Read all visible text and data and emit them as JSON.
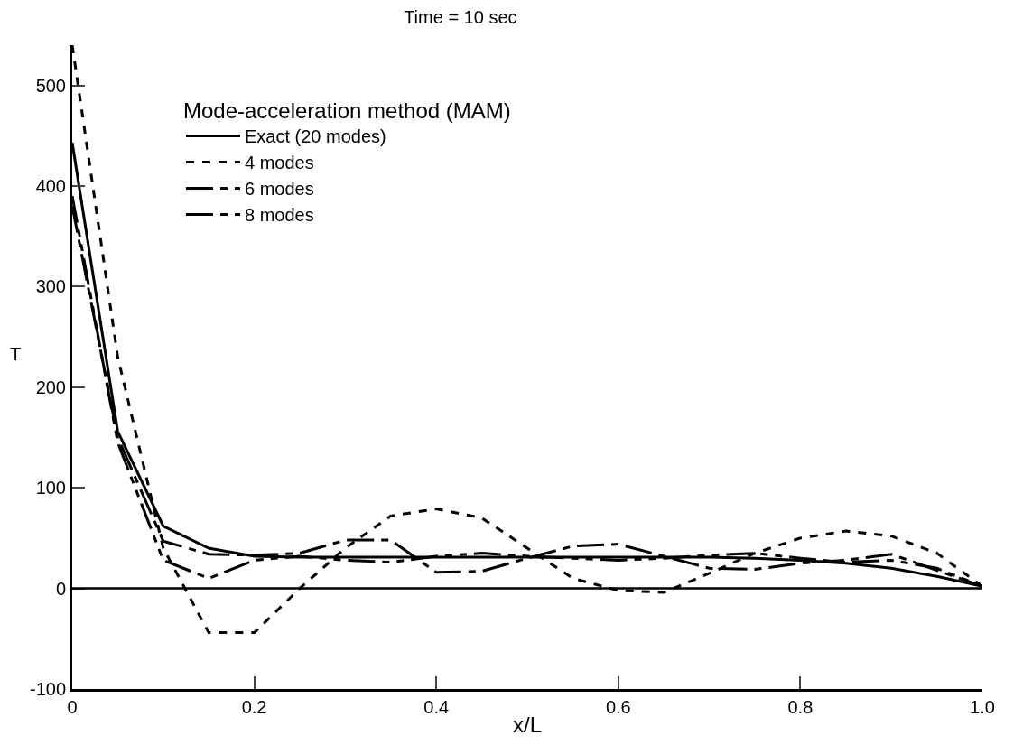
{
  "chart_data": {
    "type": "line",
    "title": "Time = 10 sec",
    "xlabel": "x/L",
    "ylabel": "T",
    "legend_title": "Mode-acceleration method (MAM)",
    "x": [
      0,
      0.05,
      0.1,
      0.15,
      0.2,
      0.25,
      0.3,
      0.35,
      0.4,
      0.45,
      0.5,
      0.55,
      0.6,
      0.65,
      0.7,
      0.75,
      0.8,
      0.85,
      0.9,
      0.95,
      1.0
    ],
    "series": [
      {
        "name": "Exact (20 modes)",
        "color": "#000000",
        "line_style": "solid",
        "values": [
          443,
          156,
          62,
          40,
          32,
          31,
          31,
          31,
          31,
          31,
          31,
          31,
          31,
          31,
          31,
          30,
          28,
          25,
          20,
          12,
          2
        ]
      },
      {
        "name": "4 modes",
        "color": "#000000",
        "line_style": "dashed",
        "values": [
          540,
          230,
          40,
          -44,
          -44,
          0,
          40,
          72,
          79,
          70,
          40,
          10,
          -2,
          -4,
          15,
          35,
          50,
          57,
          52,
          35,
          2
        ]
      },
      {
        "name": "6 modes",
        "color": "#000000",
        "line_style": "dashdot",
        "values": [
          380,
          150,
          47,
          34,
          33,
          35,
          48,
          48,
          16,
          17,
          30,
          42,
          44,
          32,
          20,
          19,
          25,
          28,
          34,
          18,
          2
        ]
      },
      {
        "name": "8 modes",
        "color": "#000000",
        "line_style": "dashdotdot",
        "values": [
          390,
          145,
          28,
          10,
          28,
          32,
          28,
          26,
          32,
          35,
          32,
          30,
          28,
          30,
          33,
          35,
          30,
          26,
          28,
          20,
          2
        ]
      }
    ],
    "xlim": [
      0,
      1.0
    ],
    "xticks": [
      0,
      0.2,
      0.4,
      0.6,
      0.8,
      {
        "value": 1.0,
        "label": "1.0"
      }
    ],
    "ylim": [
      -100,
      540
    ],
    "yticks": [
      -100,
      0,
      100,
      200,
      300,
      400,
      500
    ],
    "ref_lines": [
      {
        "axis": "y",
        "value": 0,
        "color": "#000000"
      }
    ],
    "legend": "top",
    "marker": "none"
  }
}
